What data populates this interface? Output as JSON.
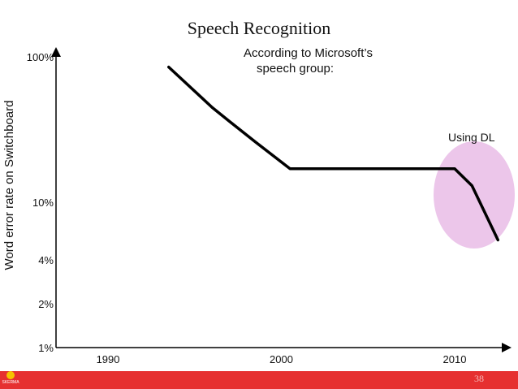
{
  "slide": {
    "title": "Speech Recognition",
    "note_line1": "According to Microsoft’s",
    "note_line2": "speech group:",
    "page_number": "38",
    "logo_text": "SKERMA"
  },
  "chart_data": {
    "type": "line",
    "title": "",
    "xlabel": "",
    "ylabel": "Word error rate on Switchboard",
    "x_ticks": [
      "1990",
      "2000",
      "2010"
    ],
    "y_ticks": [
      "100%",
      "10%",
      "4%",
      "2%",
      "1%"
    ],
    "y_scale": "log",
    "ylim": [
      1,
      100
    ],
    "xlim": [
      1987,
      2013
    ],
    "grid": false,
    "series": [
      {
        "points": [
          {
            "x": 1993.5,
            "y": 85
          },
          {
            "x": 1996,
            "y": 45
          },
          {
            "x": 1997,
            "y": 36
          },
          {
            "x": 1998.5,
            "y": 26
          },
          {
            "x": 2000.5,
            "y": 17
          },
          {
            "x": 2005,
            "y": 17
          },
          {
            "x": 2010,
            "y": 17
          },
          {
            "x": 2011,
            "y": 13
          },
          {
            "x": 2012.5,
            "y": 5.5
          }
        ]
      }
    ],
    "annotations": [
      {
        "text": "Using DL",
        "x": 2012,
        "y": 26,
        "highlight_color": "#ecc6ea"
      }
    ],
    "line_color": "#000000"
  }
}
